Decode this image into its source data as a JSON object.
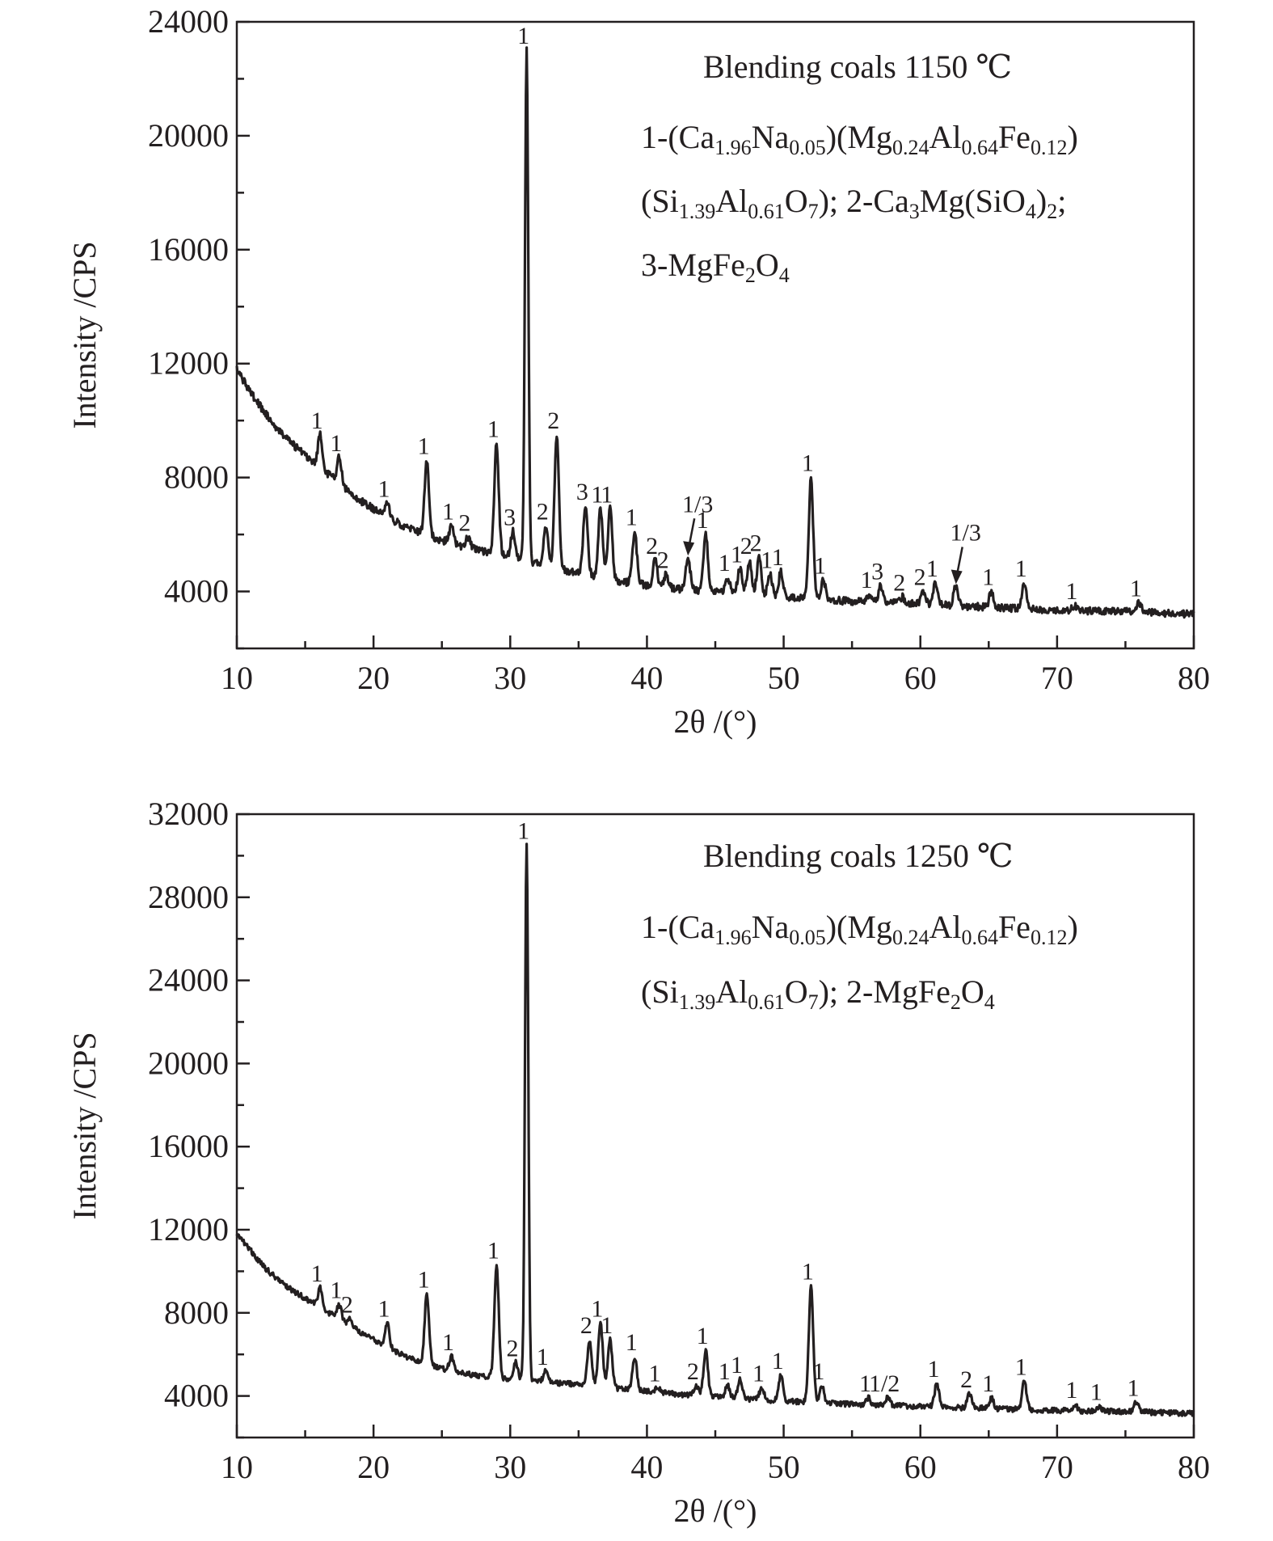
{
  "chart_data": [
    {
      "type": "line",
      "title": "Blending coals  1150 ℃",
      "xlabel": "2θ /(°)",
      "ylabel": "Intensity /CPS",
      "xlim": [
        10,
        80
      ],
      "ylim": [
        2000,
        24000
      ],
      "xticks": [
        10,
        20,
        30,
        40,
        50,
        60,
        70,
        80
      ],
      "yticks": [
        4000,
        8000,
        12000,
        16000,
        20000,
        24000
      ],
      "legend": {
        "lines": [
          [
            [
              "1-(Ca",
              ""
            ],
            [
              "1.96",
              "sub"
            ],
            [
              "Na",
              ""
            ],
            [
              "0.05",
              "sub"
            ],
            [
              ")(Mg",
              ""
            ],
            [
              "0.24",
              "sub"
            ],
            [
              "Al",
              ""
            ],
            [
              "0.64",
              "sub"
            ],
            [
              "Fe",
              ""
            ],
            [
              "0.12",
              "sub"
            ],
            [
              ")",
              ""
            ]
          ],
          [
            [
              "(Si",
              ""
            ],
            [
              "1.39",
              "sub"
            ],
            [
              "Al",
              ""
            ],
            [
              "0.61",
              "sub"
            ],
            [
              "O",
              ""
            ],
            [
              "7",
              "sub"
            ],
            [
              "); 2-Ca",
              ""
            ],
            [
              "3",
              "sub"
            ],
            [
              "Mg(SiO",
              ""
            ],
            [
              "4",
              "sub"
            ],
            [
              ")",
              ""
            ],
            [
              "2",
              "sub"
            ],
            [
              ";",
              ""
            ]
          ],
          [
            [
              "3-MgFe",
              ""
            ],
            [
              "2",
              "sub"
            ],
            [
              "O",
              ""
            ],
            [
              "4",
              "sub"
            ]
          ]
        ]
      },
      "background": [
        [
          10.0,
          11800
        ],
        [
          11.0,
          11000
        ],
        [
          12.0,
          10300
        ],
        [
          13.0,
          9700
        ],
        [
          14.0,
          9200
        ],
        [
          15.0,
          8800
        ],
        [
          16.0,
          8400
        ],
        [
          17.0,
          8000
        ],
        [
          18.0,
          7600
        ],
        [
          19.0,
          7200
        ],
        [
          20.0,
          6900
        ],
        [
          22.0,
          6350
        ],
        [
          24.0,
          5950
        ],
        [
          26.0,
          5650
        ],
        [
          28.0,
          5400
        ],
        [
          30.0,
          5200
        ],
        [
          34.0,
          4750
        ],
        [
          38.0,
          4350
        ],
        [
          42.0,
          4100
        ],
        [
          46.0,
          3950
        ],
        [
          50.0,
          3800
        ],
        [
          55.0,
          3650
        ],
        [
          60.0,
          3550
        ],
        [
          65.0,
          3450
        ],
        [
          70.0,
          3350
        ],
        [
          75.0,
          3300
        ],
        [
          80.0,
          3200
        ]
      ],
      "peaks": [
        {
          "x": 16.1,
          "y": 9500,
          "label": "1"
        },
        {
          "x": 17.5,
          "y": 8700,
          "label": "1"
        },
        {
          "x": 21.0,
          "y": 7100,
          "label": "1"
        },
        {
          "x": 23.9,
          "y": 8600,
          "label": "1"
        },
        {
          "x": 25.7,
          "y": 6300,
          "label": "1"
        },
        {
          "x": 26.9,
          "y": 5900,
          "label": "2"
        },
        {
          "x": 29.0,
          "y": 9200,
          "label": "1"
        },
        {
          "x": 30.2,
          "y": 6100,
          "label": "3"
        },
        {
          "x": 31.2,
          "y": 23000,
          "label": "1"
        },
        {
          "x": 32.6,
          "y": 6300,
          "label": "2"
        },
        {
          "x": 33.4,
          "y": 9500,
          "label": "2"
        },
        {
          "x": 35.5,
          "y": 7000,
          "label": "3"
        },
        {
          "x": 36.6,
          "y": 6900,
          "label": "1"
        },
        {
          "x": 37.3,
          "y": 6900,
          "label": "1"
        },
        {
          "x": 39.1,
          "y": 6100,
          "label": "1"
        },
        {
          "x": 40.6,
          "y": 5100,
          "label": "2"
        },
        {
          "x": 41.4,
          "y": 4600,
          "label": "2"
        },
        {
          "x": 43.0,
          "y": 5200,
          "label": "1/3",
          "arrow": true
        },
        {
          "x": 44.3,
          "y": 6000,
          "label": "1"
        },
        {
          "x": 45.9,
          "y": 4500,
          "label": "1"
        },
        {
          "x": 46.8,
          "y": 4800,
          "label": "1"
        },
        {
          "x": 47.5,
          "y": 5100,
          "label": "2"
        },
        {
          "x": 48.2,
          "y": 5200,
          "label": "2"
        },
        {
          "x": 49.0,
          "y": 4600,
          "label": "1"
        },
        {
          "x": 49.8,
          "y": 4700,
          "label": "1"
        },
        {
          "x": 52.0,
          "y": 8000,
          "label": "1"
        },
        {
          "x": 52.9,
          "y": 4400,
          "label": "1"
        },
        {
          "x": 56.3,
          "y": 3900,
          "label": "1"
        },
        {
          "x": 57.1,
          "y": 4200,
          "label": "3"
        },
        {
          "x": 58.7,
          "y": 3800,
          "label": "2"
        },
        {
          "x": 60.2,
          "y": 4000,
          "label": "2"
        },
        {
          "x": 61.1,
          "y": 4300,
          "label": "1"
        },
        {
          "x": 62.6,
          "y": 4200,
          "label": "1/3",
          "arrow": true
        },
        {
          "x": 65.2,
          "y": 4000,
          "label": "1"
        },
        {
          "x": 67.6,
          "y": 4300,
          "label": "1"
        },
        {
          "x": 71.3,
          "y": 3500,
          "label": "1"
        },
        {
          "x": 76.0,
          "y": 3600,
          "label": "1"
        }
      ]
    },
    {
      "type": "line",
      "title": "Blending coals  1250 ℃",
      "xlabel": "2θ /(°)",
      "ylabel": "Intensity /CPS",
      "xlim": [
        10,
        80
      ],
      "ylim": [
        2000,
        32000
      ],
      "xticks": [
        10,
        20,
        30,
        40,
        50,
        60,
        70,
        80
      ],
      "yticks": [
        4000,
        8000,
        12000,
        16000,
        20000,
        24000,
        28000,
        32000
      ],
      "legend": {
        "lines": [
          [
            [
              "1-(Ca",
              ""
            ],
            [
              "1.96",
              "sub"
            ],
            [
              "Na",
              ""
            ],
            [
              "0.05",
              "sub"
            ],
            [
              ")(Mg",
              ""
            ],
            [
              "0.24",
              "sub"
            ],
            [
              "Al",
              ""
            ],
            [
              "0.64",
              "sub"
            ],
            [
              "Fe",
              ""
            ],
            [
              "0.12",
              "sub"
            ],
            [
              ")",
              ""
            ]
          ],
          [
            [
              "(Si",
              ""
            ],
            [
              "1.39",
              "sub"
            ],
            [
              "Al",
              ""
            ],
            [
              "0.61",
              "sub"
            ],
            [
              "O",
              ""
            ],
            [
              "7",
              "sub"
            ],
            [
              "); 2-MgFe",
              ""
            ],
            [
              "2",
              "sub"
            ],
            [
              "O",
              ""
            ],
            [
              "4",
              "sub"
            ]
          ]
        ]
      },
      "background": [
        [
          10.0,
          11800
        ],
        [
          11.0,
          11000
        ],
        [
          12.0,
          10200
        ],
        [
          13.0,
          9600
        ],
        [
          14.0,
          9100
        ],
        [
          15.0,
          8700
        ],
        [
          16.0,
          8300
        ],
        [
          17.0,
          7900
        ],
        [
          18.0,
          7500
        ],
        [
          19.0,
          7100
        ],
        [
          20.0,
          6700
        ],
        [
          22.0,
          6000
        ],
        [
          24.0,
          5500
        ],
        [
          26.0,
          5150
        ],
        [
          28.0,
          4950
        ],
        [
          30.0,
          4800
        ],
        [
          34.0,
          4600
        ],
        [
          38.0,
          4350
        ],
        [
          42.0,
          4100
        ],
        [
          46.0,
          3900
        ],
        [
          50.0,
          3750
        ],
        [
          55.0,
          3600
        ],
        [
          60.0,
          3500
        ],
        [
          65.0,
          3400
        ],
        [
          70.0,
          3300
        ],
        [
          75.0,
          3250
        ],
        [
          80.0,
          3150
        ]
      ],
      "peaks": [
        {
          "x": 16.1,
          "y": 9200,
          "label": "1"
        },
        {
          "x": 17.5,
          "y": 8400,
          "label": "1"
        },
        {
          "x": 18.3,
          "y": 7700,
          "label": "2"
        },
        {
          "x": 21.0,
          "y": 7500,
          "label": "1"
        },
        {
          "x": 23.9,
          "y": 8900,
          "label": "1"
        },
        {
          "x": 25.7,
          "y": 5900,
          "label": "1"
        },
        {
          "x": 29.0,
          "y": 10300,
          "label": "1"
        },
        {
          "x": 30.4,
          "y": 5600,
          "label": "2"
        },
        {
          "x": 31.2,
          "y": 30500,
          "label": "1"
        },
        {
          "x": 32.6,
          "y": 5200,
          "label": "1"
        },
        {
          "x": 35.8,
          "y": 6700,
          "label": "2"
        },
        {
          "x": 36.6,
          "y": 7500,
          "label": "1"
        },
        {
          "x": 37.3,
          "y": 6700,
          "label": "1"
        },
        {
          "x": 39.1,
          "y": 5900,
          "label": "1"
        },
        {
          "x": 40.8,
          "y": 4400,
          "label": "1"
        },
        {
          "x": 43.6,
          "y": 4500,
          "label": "2"
        },
        {
          "x": 44.3,
          "y": 6200,
          "label": "1"
        },
        {
          "x": 45.9,
          "y": 4500,
          "label": "1"
        },
        {
          "x": 46.8,
          "y": 4800,
          "label": "1"
        },
        {
          "x": 48.4,
          "y": 4400,
          "label": "1"
        },
        {
          "x": 49.8,
          "y": 5000,
          "label": "1"
        },
        {
          "x": 52.0,
          "y": 9300,
          "label": "1"
        },
        {
          "x": 52.8,
          "y": 4500,
          "label": "1"
        },
        {
          "x": 56.2,
          "y": 3900,
          "label": "1"
        },
        {
          "x": 57.6,
          "y": 3900,
          "label": "1/2"
        },
        {
          "x": 61.2,
          "y": 4600,
          "label": "1"
        },
        {
          "x": 63.6,
          "y": 4100,
          "label": "2"
        },
        {
          "x": 65.2,
          "y": 3900,
          "label": "1"
        },
        {
          "x": 67.6,
          "y": 4700,
          "label": "1"
        },
        {
          "x": 71.3,
          "y": 3600,
          "label": "1"
        },
        {
          "x": 73.1,
          "y": 3500,
          "label": "1"
        },
        {
          "x": 75.8,
          "y": 3700,
          "label": "1"
        }
      ]
    }
  ]
}
